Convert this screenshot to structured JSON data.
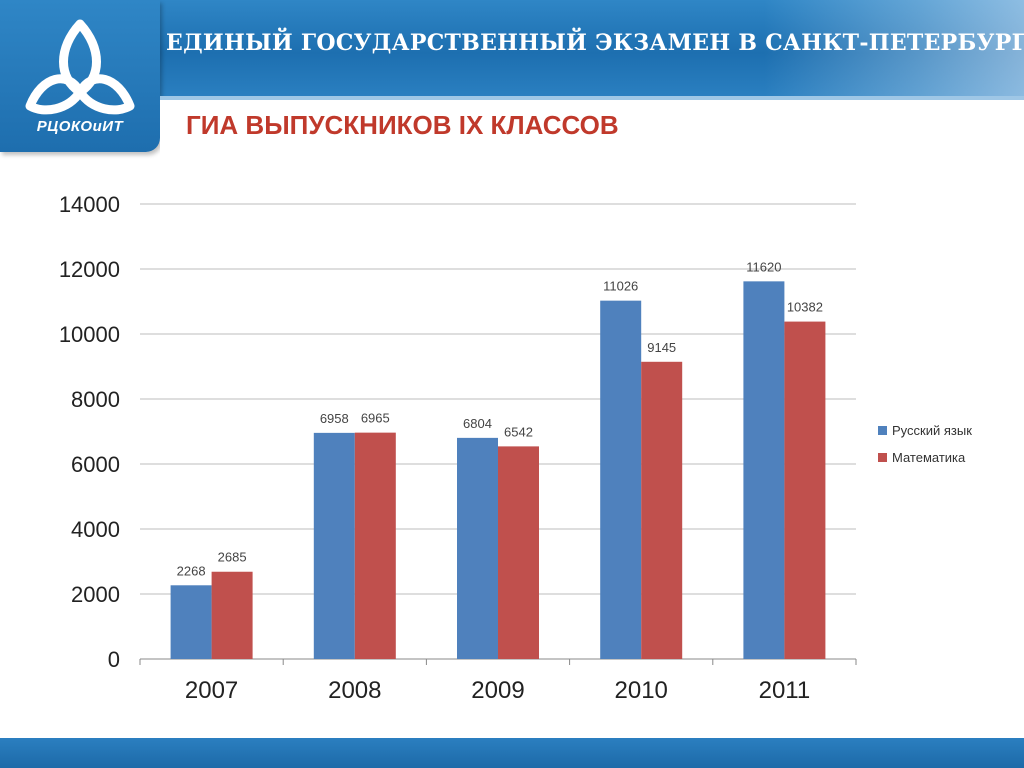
{
  "header": {
    "title": "ЕДИНЫЙ ГОСУДАРСТВЕННЫЙ ЭКЗАМЕН В САНКТ-ПЕТЕРБУРГЕ",
    "logo_text": "РЦОКОиИТ",
    "subtitle": "ГИА ВЫПУСКНИКОВ IX КЛАССОВ"
  },
  "colors": {
    "series_russian": "#4f81bd",
    "series_math": "#c0504d",
    "subtitle": "#c0392b",
    "header_blue": "#1d6fb0"
  },
  "chart_data": {
    "type": "bar",
    "categories": [
      "2007",
      "2008",
      "2009",
      "2010",
      "2011"
    ],
    "series": [
      {
        "name": "Русский язык",
        "values": [
          2268,
          6958,
          6804,
          11026,
          11620
        ]
      },
      {
        "name": "Математика",
        "values": [
          2685,
          6965,
          6542,
          9145,
          10382
        ]
      }
    ],
    "ylim": [
      0,
      14000
    ],
    "yticks": [
      "0",
      "2000",
      "4000",
      "6000",
      "8000",
      "10000",
      "12000",
      "14000"
    ],
    "grid": true,
    "legend": "right"
  }
}
